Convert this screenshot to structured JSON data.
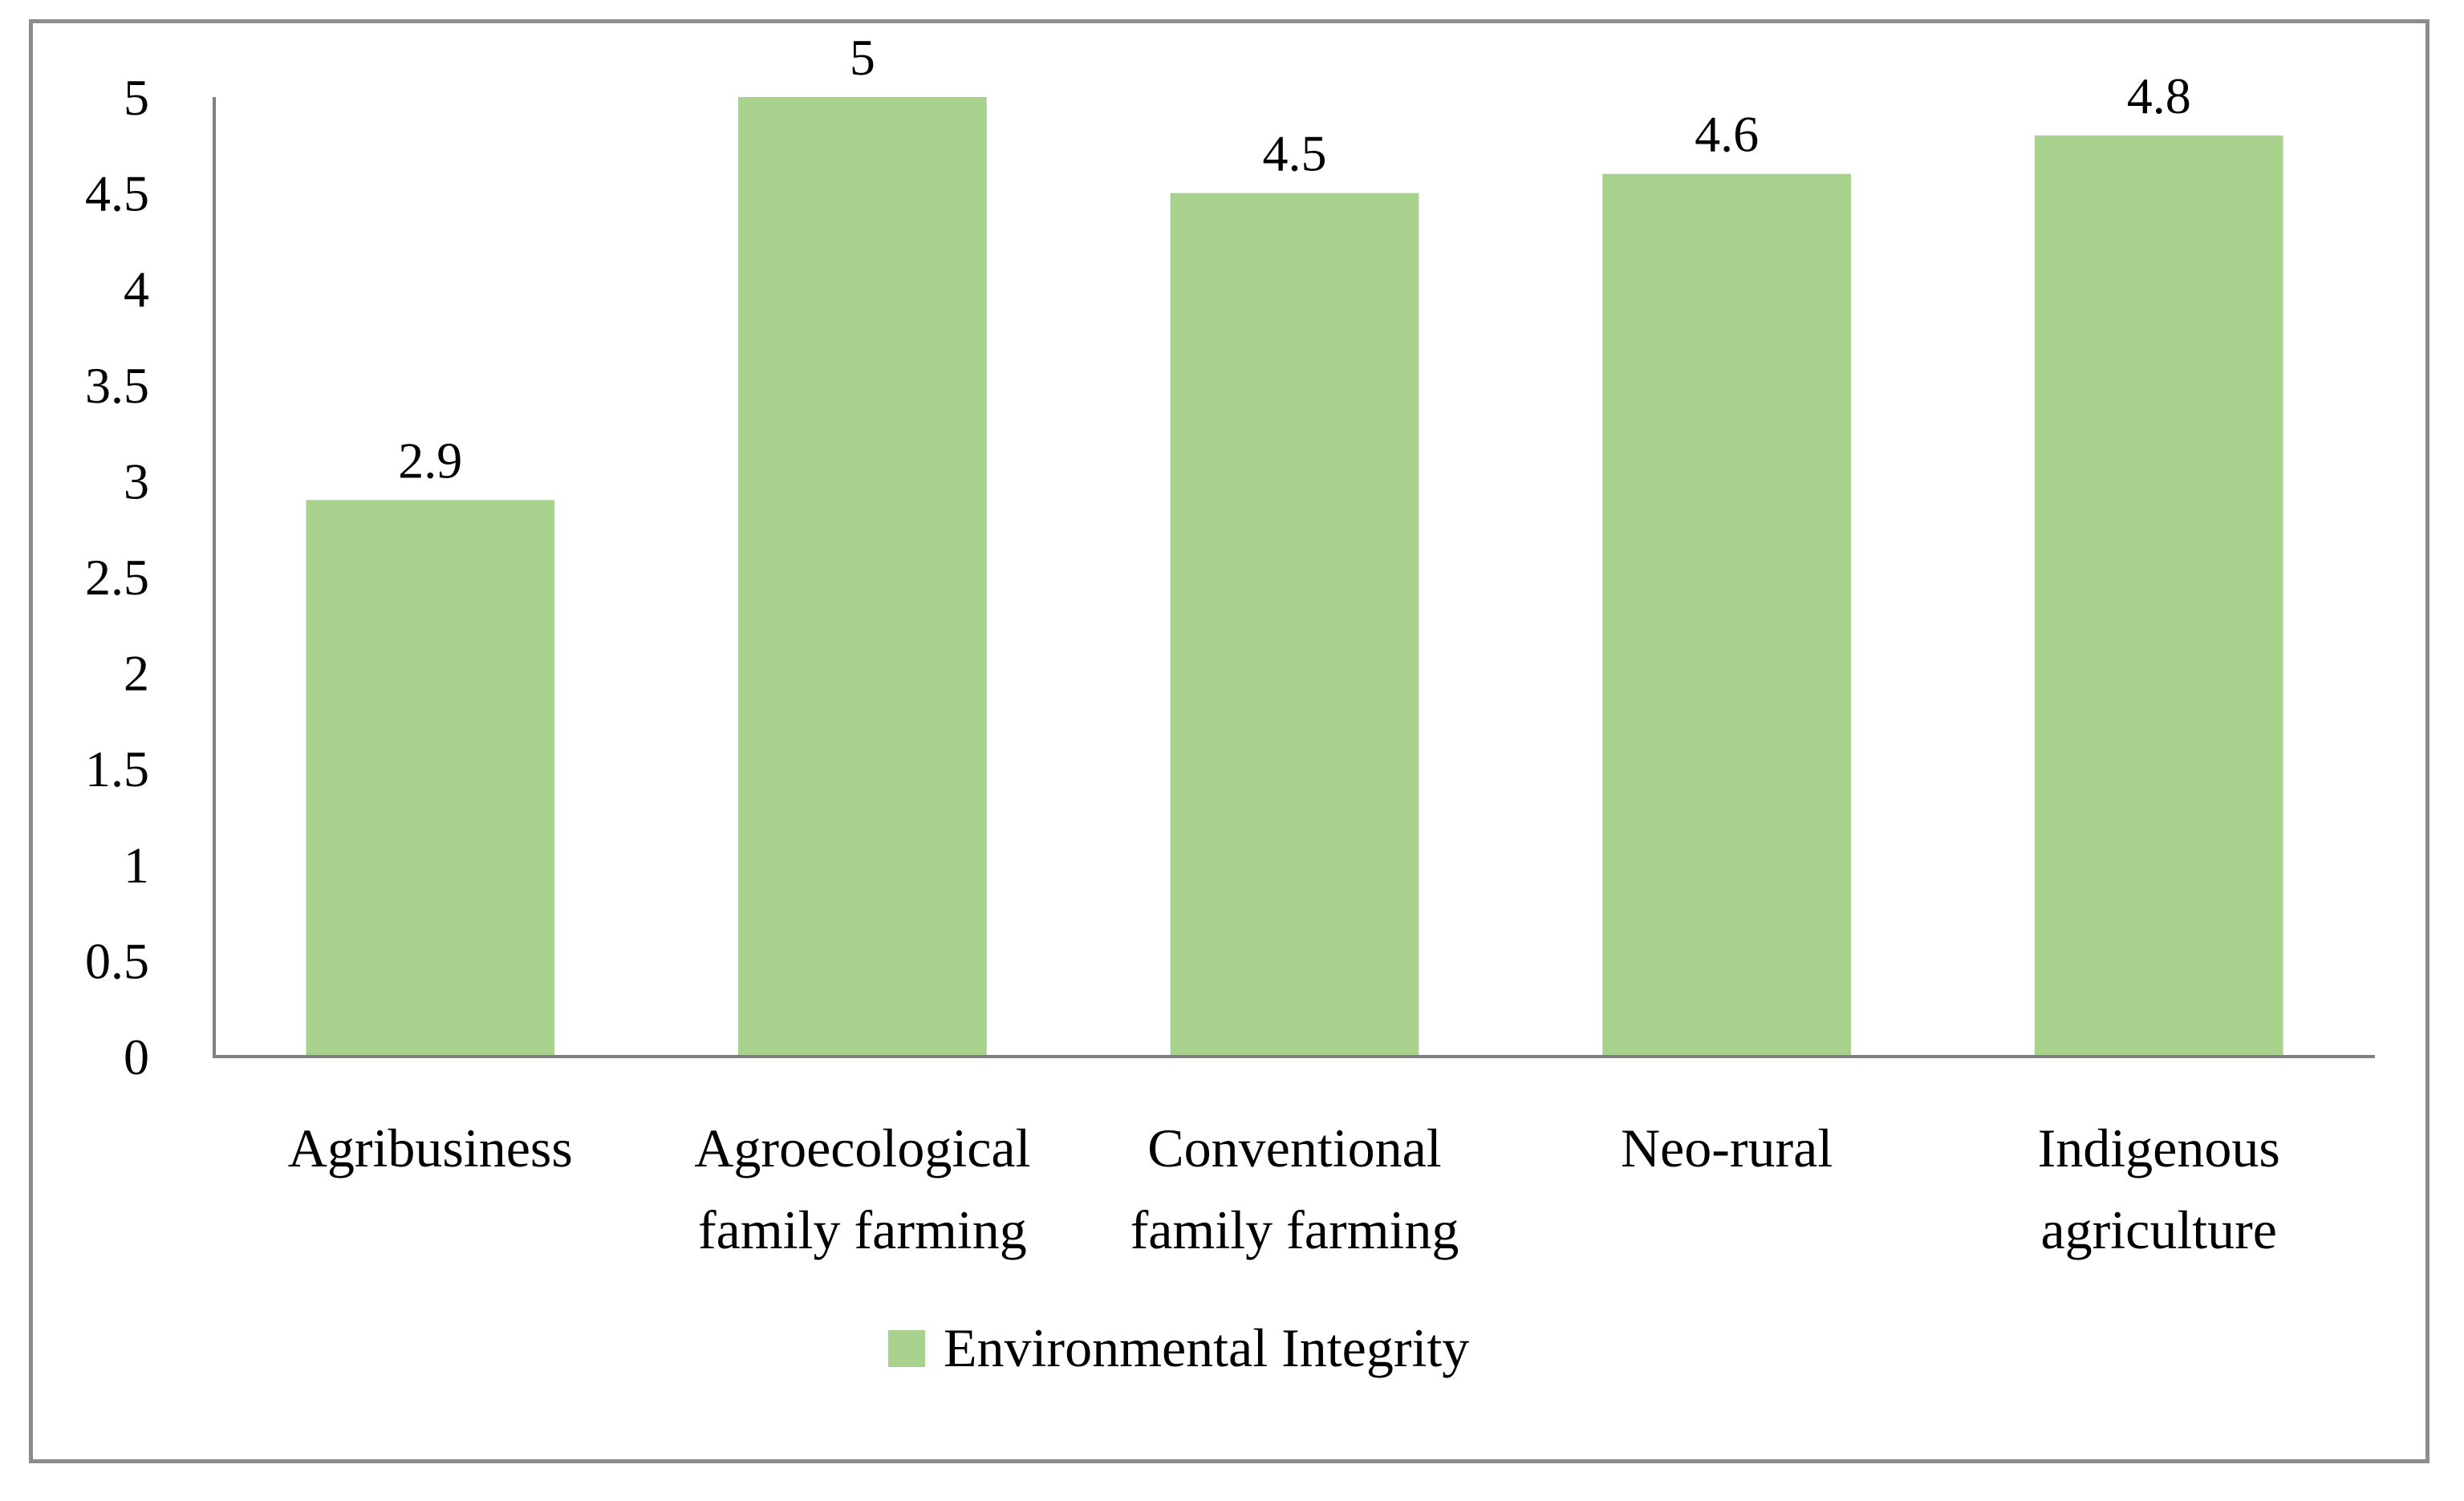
{
  "chart_data": {
    "type": "bar",
    "title": "",
    "xlabel": "",
    "ylabel": "",
    "categories": [
      [
        "Agribusiness"
      ],
      [
        "Agroecological",
        "family farming"
      ],
      [
        "Conventional",
        "family farming"
      ],
      [
        "Neo-rural"
      ],
      [
        "Indigenous",
        "agriculture"
      ]
    ],
    "series": [
      {
        "name": "Environmental Integrity",
        "color": "#a9d18e",
        "values": [
          2.9,
          5,
          4.5,
          4.6,
          4.8
        ],
        "value_labels": [
          "2.9",
          "5",
          "4.5",
          "4.6",
          "4.8"
        ]
      }
    ],
    "ylim": [
      0,
      5
    ],
    "yticks": [
      0,
      0.5,
      1,
      1.5,
      2,
      2.5,
      3,
      3.5,
      4,
      4.5,
      5
    ],
    "ytick_labels": [
      "0",
      "0.5",
      "1",
      "1.5",
      "2",
      "2.5",
      "3",
      "3.5",
      "4",
      "4.5",
      "5"
    ],
    "grid": false,
    "legend_position": "bottom",
    "axis_color": "#7f7f7f",
    "border_color": "#8c8c8c"
  }
}
